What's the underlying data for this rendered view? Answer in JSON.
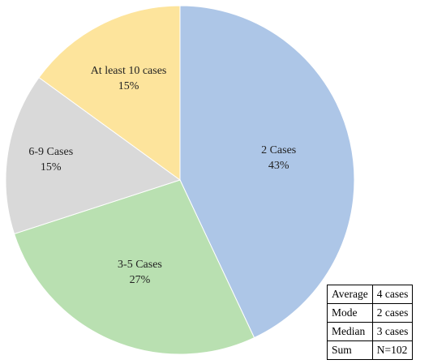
{
  "chart_data": {
    "type": "pie",
    "categories": [
      "2 Cases",
      "3-5 Cases",
      "6-9 Cases",
      "At least 10 cases"
    ],
    "values": [
      43,
      27,
      15,
      15
    ],
    "value_labels": [
      "43%",
      "27%",
      "15%",
      "15%"
    ],
    "colors": [
      "#adc6e7",
      "#b9e0b1",
      "#d9d9d9",
      "#fde49c"
    ]
  },
  "table": {
    "rows": [
      [
        "Average",
        "4 cases"
      ],
      [
        "Mode",
        "2 cases"
      ],
      [
        "Median",
        "3 cases"
      ],
      [
        "Sum",
        "N=102"
      ]
    ]
  }
}
